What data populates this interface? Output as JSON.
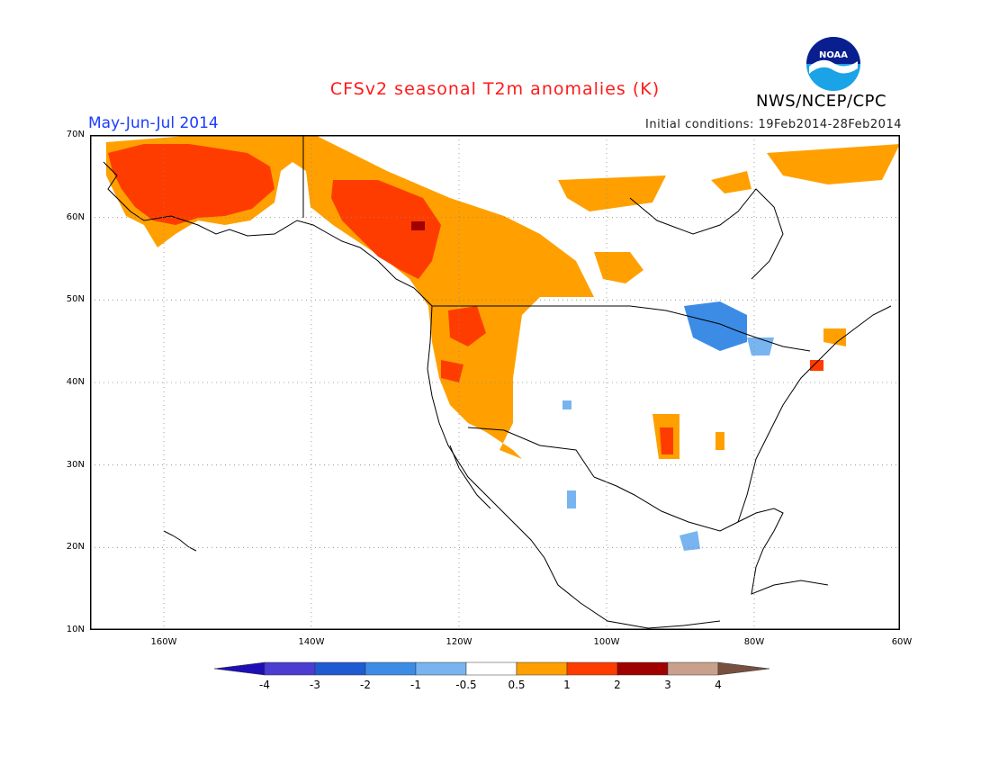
{
  "header": {
    "title": "CFSv2 seasonal T2m anomalies (K)",
    "period": "May-Jun-Jul 2014",
    "initial_conditions": "Initial conditions: 19Feb2014-28Feb2014",
    "agency": "NWS/NCEP/CPC",
    "logo_text": "NOAA"
  },
  "map": {
    "lon_range": [
      -170,
      -60
    ],
    "lat_range": [
      10,
      70
    ],
    "lat_labels": [
      "70N",
      "60N",
      "50N",
      "40N",
      "30N",
      "20N",
      "10N"
    ],
    "lon_labels": [
      "160W",
      "140W",
      "120W",
      "100W",
      "80W",
      "60W"
    ],
    "grid_lines": true
  },
  "colorbar": {
    "labels": [
      "-4",
      "-3",
      "-2",
      "-1",
      "-0.5",
      "0.5",
      "1",
      "2",
      "3",
      "4"
    ],
    "colors": [
      "#1e0fb4",
      "#4b3cd2",
      "#1e5ad2",
      "#3c8ce6",
      "#78b4f0",
      "#ffffff",
      "#ffa000",
      "#ff3c00",
      "#a00000",
      "#c8a08c",
      "#785040"
    ]
  },
  "colors": {
    "warm1": "#ffa000",
    "warm2": "#ff3c00",
    "warm3": "#a00000",
    "cool1": "#78b4f0",
    "cool2": "#3c8ce6",
    "cool3": "#1e5ad2"
  }
}
